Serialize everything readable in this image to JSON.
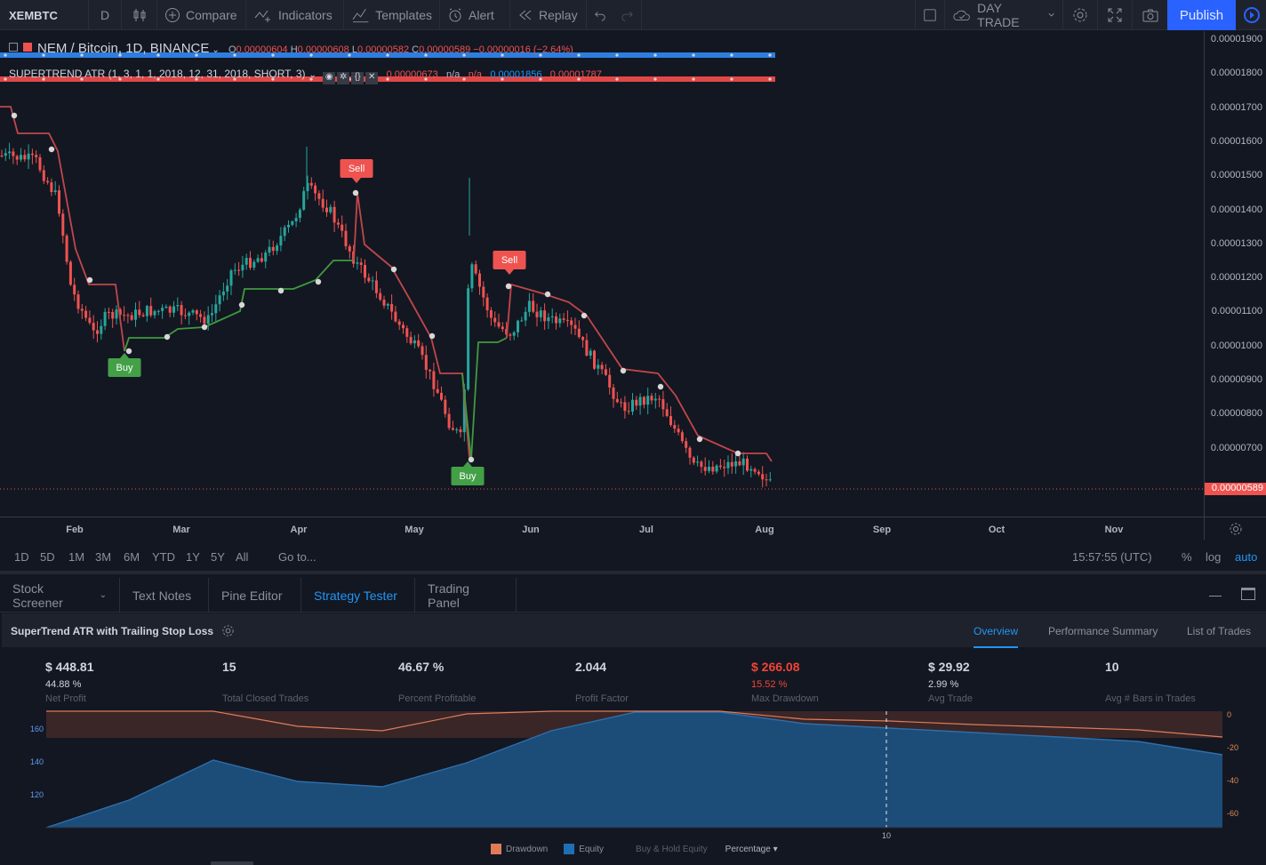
{
  "toolbar": {
    "symbol": "XEMBTC",
    "interval": "D",
    "compare": "Compare",
    "indicators": "Indicators",
    "templates": "Templates",
    "alert": "Alert",
    "replay": "Replay",
    "layout_name": "DAY TRADE",
    "publish": "Publish"
  },
  "legend": {
    "symbol_line": "NEM / Bitcoin, 1D, BINANCE",
    "open_label": "O",
    "open": "0.00000604",
    "high_label": "H",
    "high": "0.00000608",
    "low_label": "L",
    "low": "0.00000582",
    "close_label": "C",
    "close": "0.00000589",
    "change": "−0.00000016 (−2.64%)",
    "indicator": "SUPERTREND ATR (1, 3, 1, 1, 2018, 12, 31, 2018, SHORT, 3)",
    "ind_v1": "0.00000673",
    "ind_v2": "n/a",
    "ind_v3": "n/a",
    "ind_v4": "0.00001856",
    "ind_v5": "0.00001787"
  },
  "price_axis": [
    "0.00001900",
    "0.00001800",
    "0.00001700",
    "0.00001600",
    "0.00001500",
    "0.00001400",
    "0.00001300",
    "0.00001200",
    "0.00001100",
    "0.00001000",
    "0.00000900",
    "0.00000800",
    "0.00000700"
  ],
  "last_price": "0.00000589",
  "time_axis": [
    "Feb",
    "Mar",
    "Apr",
    "May",
    "Jun",
    "Jul",
    "Aug",
    "Sep",
    "Oct",
    "Nov"
  ],
  "signals": [
    {
      "label": "Buy"
    },
    {
      "label": "Sell"
    },
    {
      "label": "Buy"
    },
    {
      "label": "Sell"
    }
  ],
  "range_bar": {
    "ranges": [
      "1D",
      "5D",
      "1M",
      "3M",
      "6M",
      "YTD",
      "1Y",
      "5Y",
      "All"
    ],
    "goto": "Go to...",
    "clock": "15:57:55 (UTC)",
    "pct": "%",
    "log": "log",
    "auto": "auto"
  },
  "bottom_tabs": [
    "Stock Screener",
    "Text Notes",
    "Pine Editor",
    "Strategy Tester",
    "Trading Panel"
  ],
  "strategy": {
    "title": "SuperTrend ATR with Trailing Stop Loss",
    "tabs": [
      "Overview",
      "Performance Summary",
      "List of Trades"
    ],
    "metrics": [
      {
        "value": "$ 448.81",
        "sub": "44.88 %",
        "label": "Net Profit"
      },
      {
        "value": "15",
        "sub": "",
        "label": "Total Closed Trades"
      },
      {
        "value": "46.67 %",
        "sub": "",
        "label": "Percent Profitable"
      },
      {
        "value": "2.044",
        "sub": "",
        "label": "Profit Factor"
      },
      {
        "value": "$ 266.08",
        "sub": "15.52 %",
        "label": "Max Drawdown"
      },
      {
        "value": "$ 29.92",
        "sub": "2.99 %",
        "label": "Avg Trade"
      },
      {
        "value": "10",
        "sub": "",
        "label": "Avg # Bars in Trades"
      }
    ],
    "equity_axis": [
      "160",
      "140",
      "120"
    ],
    "drawdown_axis": [
      "0",
      "-20",
      "-40",
      "-60"
    ],
    "x_marker": "10",
    "legend": {
      "drawdown": "Drawdown",
      "equity": "Equity",
      "buyhold": "Buy & Hold Equity",
      "mode": "Percentage"
    }
  },
  "colors": {
    "up": "#26a69a",
    "down": "#ef5350",
    "bg": "#131722",
    "accent": "#2196f3",
    "equity": "#1c4f7e",
    "drawdown": "#e07b5a",
    "trail_up": "#3f9a3f",
    "trail_down": "#c0474a"
  }
}
